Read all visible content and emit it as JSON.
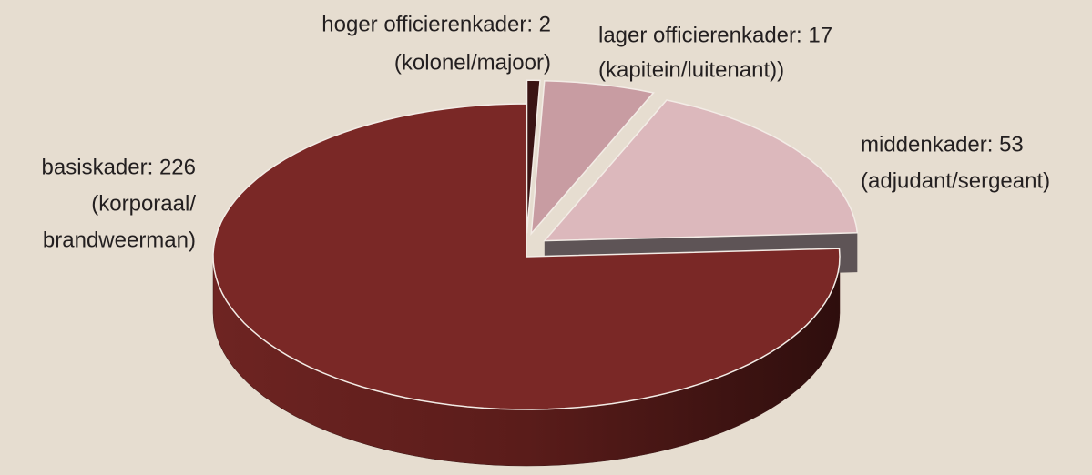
{
  "chart_data": {
    "type": "pie3d",
    "labels": [
      [
        "basiskader: 226",
        "(korporaal/",
        "brandweerman)"
      ],
      [
        "middenkader: 53",
        "(adjudant/sergeant)"
      ],
      [
        "lager officierenkader: 17",
        "(kapitein/luitenant))"
      ],
      [
        "hoger officierenkader: 2",
        "(kolonel/majoor)"
      ]
    ],
    "values": [
      226,
      53,
      17,
      2
    ],
    "colors": [
      "#7a2826",
      "#dcb8bc",
      "#c89ca2",
      "#3a1414"
    ],
    "direction": "counterclockwise-from-top"
  }
}
